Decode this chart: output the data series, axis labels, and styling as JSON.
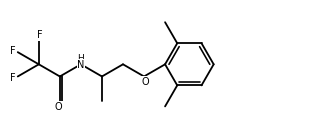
{
  "bg_color": "#ffffff",
  "line_color": "#000000",
  "line_width": 1.3,
  "font_size": 7.0,
  "fig_width": 3.24,
  "fig_height": 1.32,
  "dpi": 100,
  "bl": 0.72,
  "cos30": 0.8660254,
  "sin30": 0.5,
  "xlim": [
    -0.1,
    9.5
  ],
  "ylim": [
    0.2,
    4.0
  ]
}
